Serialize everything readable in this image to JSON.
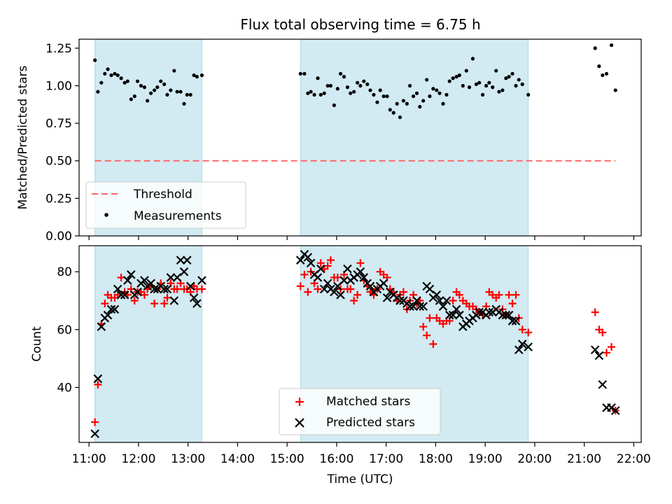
{
  "figure_title": "Flux total observing time = 6.75 h",
  "colors": {
    "observing_shade": "#add8e6",
    "threshold": "#ff6666",
    "measurements": "#000000",
    "matched": "#ff0000",
    "predicted": "#000000"
  },
  "chart_data": [
    {
      "type": "scatter",
      "ylabel": "Matched/Predicted stars",
      "xlim": [
        10.8,
        22.15
      ],
      "ylim": [
        0.0,
        1.31
      ],
      "yticks": [
        "0.00",
        "0.25",
        "0.50",
        "0.75",
        "1.00",
        "1.25"
      ],
      "ytick_values": [
        0,
        0.25,
        0.5,
        0.75,
        1.0,
        1.25
      ],
      "shaded_intervals": [
        [
          11.12,
          13.28
        ],
        [
          15.27,
          19.87
        ]
      ],
      "legend": {
        "position": "lower left",
        "entries": [
          "Threshold",
          "Measurements"
        ]
      },
      "series": [
        {
          "name": "Threshold",
          "kind": "dashed-line",
          "x": [
            11.12,
            21.63
          ],
          "y": [
            0.5,
            0.5
          ]
        },
        {
          "name": "Measurements",
          "kind": "dots",
          "x": [
            11.12,
            11.18,
            11.25,
            11.32,
            11.38,
            11.45,
            11.52,
            11.58,
            11.65,
            11.72,
            11.78,
            11.85,
            11.92,
            11.98,
            12.05,
            12.12,
            12.18,
            12.25,
            12.32,
            12.38,
            12.45,
            12.52,
            12.58,
            12.65,
            12.72,
            12.78,
            12.85,
            12.92,
            12.98,
            13.05,
            13.12,
            13.18,
            13.28,
            15.27,
            15.35,
            15.42,
            15.48,
            15.55,
            15.62,
            15.68,
            15.75,
            15.82,
            15.88,
            15.95,
            16.02,
            16.08,
            16.15,
            16.22,
            16.28,
            16.35,
            16.42,
            16.48,
            16.55,
            16.62,
            16.68,
            16.75,
            16.82,
            16.88,
            16.95,
            17.02,
            17.08,
            17.15,
            17.22,
            17.28,
            17.35,
            17.42,
            17.48,
            17.55,
            17.62,
            17.68,
            17.75,
            17.82,
            17.88,
            17.95,
            18.02,
            18.08,
            18.15,
            18.22,
            18.28,
            18.35,
            18.42,
            18.48,
            18.55,
            18.62,
            18.68,
            18.75,
            18.82,
            18.88,
            18.95,
            19.02,
            19.08,
            19.15,
            19.22,
            19.28,
            19.35,
            19.42,
            19.48,
            19.55,
            19.62,
            19.68,
            19.75,
            19.87,
            21.22,
            21.3,
            21.37,
            21.45,
            21.55,
            21.63
          ],
          "y": [
            1.17,
            0.96,
            1.02,
            1.08,
            1.11,
            1.07,
            1.08,
            1.07,
            1.05,
            1.02,
            1.03,
            0.91,
            0.93,
            1.03,
            1.0,
            0.99,
            0.9,
            0.95,
            0.97,
            0.99,
            1.03,
            1.01,
            0.94,
            0.97,
            1.1,
            0.96,
            0.96,
            0.88,
            0.94,
            0.94,
            1.07,
            1.06,
            1.07,
            1.08,
            1.08,
            0.95,
            0.96,
            0.94,
            1.05,
            0.94,
            0.95,
            1.0,
            1.0,
            0.87,
            0.98,
            1.08,
            1.06,
            0.99,
            0.95,
            0.96,
            1.02,
            1.0,
            1.03,
            1.01,
            0.97,
            0.94,
            0.89,
            0.97,
            0.93,
            0.93,
            0.84,
            0.82,
            0.88,
            0.79,
            0.9,
            0.88,
            1.0,
            0.93,
            0.95,
            0.86,
            0.9,
            1.04,
            0.93,
            0.98,
            0.97,
            0.95,
            0.88,
            0.94,
            1.03,
            1.05,
            1.06,
            1.07,
            1.0,
            1.1,
            0.99,
            1.18,
            1.01,
            1.02,
            0.94,
            1.0,
            1.02,
            0.99,
            1.1,
            0.96,
            0.97,
            1.05,
            1.06,
            1.08,
            1.0,
            1.04,
            1.01,
            0.94,
            1.25,
            1.13,
            1.07,
            1.08,
            1.27,
            0.97
          ]
        }
      ]
    },
    {
      "type": "scatter",
      "xlabel": "Time (UTC)",
      "ylabel": "Count",
      "xlim": [
        10.8,
        22.15
      ],
      "ylim": [
        21,
        89
      ],
      "xticks": [
        "11:00",
        "12:00",
        "13:00",
        "14:00",
        "15:00",
        "16:00",
        "17:00",
        "18:00",
        "19:00",
        "20:00",
        "21:00",
        "22:00"
      ],
      "xtick_values": [
        11,
        12,
        13,
        14,
        15,
        16,
        17,
        18,
        19,
        20,
        21,
        22
      ],
      "yticks": [
        "40",
        "60",
        "80"
      ],
      "ytick_values": [
        40,
        60,
        80
      ],
      "shaded_intervals": [
        [
          11.12,
          13.28
        ],
        [
          15.27,
          19.87
        ]
      ],
      "legend": {
        "position": "lower center",
        "entries": [
          "Matched stars",
          "Predicted stars"
        ]
      },
      "series": [
        {
          "name": "Matched stars",
          "marker": "plus",
          "x": [
            11.12,
            11.18,
            11.25,
            11.32,
            11.38,
            11.45,
            11.52,
            11.58,
            11.65,
            11.72,
            11.78,
            11.85,
            11.92,
            11.98,
            12.05,
            12.12,
            12.18,
            12.25,
            12.32,
            12.38,
            12.45,
            12.52,
            12.58,
            12.65,
            12.72,
            12.78,
            12.85,
            12.92,
            12.98,
            13.05,
            13.12,
            13.18,
            13.28,
            15.27,
            15.35,
            15.42,
            15.48,
            15.55,
            15.62,
            15.68,
            15.75,
            15.82,
            15.88,
            15.95,
            16.02,
            16.08,
            16.15,
            16.22,
            16.28,
            16.35,
            16.42,
            16.48,
            16.55,
            16.62,
            16.68,
            16.75,
            16.82,
            16.88,
            16.95,
            17.02,
            17.08,
            17.15,
            17.22,
            17.28,
            17.35,
            17.42,
            17.48,
            17.55,
            17.62,
            17.68,
            17.75,
            17.82,
            17.88,
            17.95,
            18.02,
            18.08,
            18.15,
            18.22,
            18.28,
            18.35,
            18.42,
            18.48,
            18.55,
            18.62,
            18.68,
            18.75,
            18.82,
            18.88,
            18.95,
            19.02,
            19.08,
            19.15,
            19.22,
            19.28,
            19.35,
            19.42,
            19.48,
            19.55,
            19.62,
            19.68,
            19.75,
            19.87,
            21.22,
            21.3,
            21.37,
            21.45,
            21.55,
            21.63
          ],
          "y": [
            28,
            41,
            62,
            69,
            72,
            71,
            71,
            72,
            78,
            73,
            72,
            74,
            70,
            73,
            73,
            72,
            74,
            75,
            69,
            74,
            76,
            69,
            71,
            76,
            74,
            74,
            76,
            74,
            74,
            73,
            75,
            74,
            74,
            75,
            79,
            73,
            80,
            76,
            74,
            83,
            81,
            82,
            84,
            78,
            78,
            74,
            79,
            74,
            74,
            70,
            72,
            83,
            77,
            75,
            73,
            72,
            74,
            80,
            79,
            78,
            74,
            73,
            70,
            72,
            73,
            67,
            70,
            72,
            69,
            70,
            61,
            58,
            64,
            55,
            64,
            63,
            62,
            63,
            63,
            70,
            73,
            72,
            70,
            69,
            68,
            68,
            67,
            66,
            65,
            68,
            73,
            72,
            71,
            72,
            67,
            65,
            72,
            69,
            72,
            64,
            60,
            59,
            66,
            60,
            59,
            52,
            54,
            32
          ]
        },
        {
          "name": "Predicted stars",
          "marker": "x",
          "x": [
            11.12,
            11.18,
            11.25,
            11.32,
            11.38,
            11.45,
            11.52,
            11.58,
            11.65,
            11.72,
            11.78,
            11.85,
            11.92,
            11.98,
            12.05,
            12.12,
            12.18,
            12.25,
            12.32,
            12.38,
            12.45,
            12.52,
            12.58,
            12.65,
            12.72,
            12.78,
            12.85,
            12.92,
            12.98,
            13.05,
            13.12,
            13.18,
            13.28,
            15.27,
            15.35,
            15.42,
            15.48,
            15.55,
            15.62,
            15.68,
            15.75,
            15.82,
            15.88,
            15.95,
            16.02,
            16.08,
            16.15,
            16.22,
            16.28,
            16.35,
            16.42,
            16.48,
            16.55,
            16.62,
            16.68,
            16.75,
            16.82,
            16.88,
            16.95,
            17.02,
            17.08,
            17.15,
            17.22,
            17.28,
            17.35,
            17.42,
            17.48,
            17.55,
            17.62,
            17.68,
            17.75,
            17.82,
            17.88,
            17.95,
            18.02,
            18.08,
            18.15,
            18.22,
            18.28,
            18.35,
            18.42,
            18.48,
            18.55,
            18.62,
            18.68,
            18.75,
            18.82,
            18.88,
            18.95,
            19.02,
            19.08,
            19.15,
            19.22,
            19.28,
            19.35,
            19.42,
            19.48,
            19.55,
            19.62,
            19.68,
            19.75,
            19.87,
            21.22,
            21.3,
            21.37,
            21.45,
            21.55,
            21.63
          ],
          "y": [
            24,
            43,
            61,
            64,
            65,
            67,
            67,
            74,
            72,
            72,
            77,
            79,
            72,
            73,
            76,
            77,
            75,
            76,
            74,
            74,
            75,
            74,
            74,
            78,
            70,
            78,
            84,
            80,
            84,
            75,
            71,
            69,
            77,
            84,
            86,
            85,
            83,
            79,
            78,
            81,
            74,
            76,
            74,
            73,
            75,
            72,
            77,
            81,
            77,
            78,
            79,
            80,
            78,
            76,
            75,
            73,
            74,
            75,
            76,
            71,
            73,
            72,
            71,
            70,
            70,
            69,
            68,
            68,
            70,
            68,
            68,
            75,
            74,
            71,
            72,
            70,
            68,
            70,
            65,
            65,
            67,
            65,
            61,
            62,
            63,
            64,
            65,
            66,
            66,
            65,
            66,
            66,
            67,
            66,
            65,
            65,
            65,
            63,
            63,
            53,
            55,
            54,
            53,
            51,
            41,
            33,
            33,
            32
          ]
        }
      ]
    }
  ]
}
